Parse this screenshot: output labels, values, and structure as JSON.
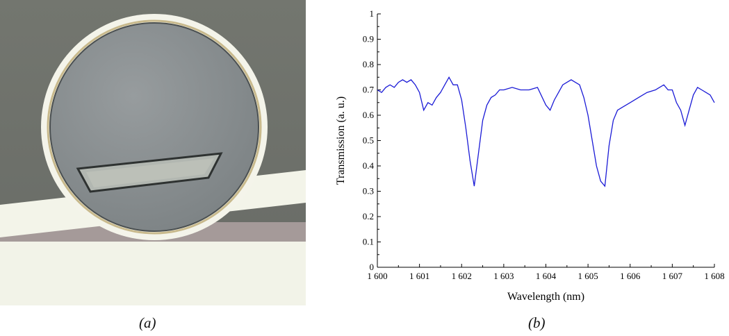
{
  "captions": {
    "a": "(a)",
    "b": "(b)"
  },
  "colors": {
    "line": "#1a1ad6",
    "axis": "#000000",
    "waveguide": "#f3f4ea",
    "substrate": "#6f736e",
    "disk": "#878d8e"
  },
  "chart_data": {
    "type": "line",
    "xlabel": "Wavelength (nm)",
    "ylabel": "Transmission (a. u.)",
    "xlim": [
      1600,
      1608
    ],
    "ylim": [
      0,
      1
    ],
    "xticks": [
      1600,
      1601,
      1602,
      1603,
      1604,
      1605,
      1606,
      1607,
      1608
    ],
    "xtick_labels": [
      "1 600",
      "1 601",
      "1 602",
      "1 603",
      "1 604",
      "1 605",
      "1 606",
      "1 607",
      "1 608"
    ],
    "yticks": [
      0,
      0.1,
      0.2,
      0.3,
      0.4,
      0.5,
      0.6,
      0.7,
      0.8,
      0.9,
      1
    ],
    "ytick_labels": [
      "0",
      "0.1",
      "0.2",
      "0.3",
      "0.4",
      "0.5",
      "0.6",
      "0.7",
      "0.8",
      "0.9",
      "1"
    ],
    "grid": false,
    "series": [
      {
        "x": [
          1600.0,
          1600.1,
          1600.2,
          1600.3,
          1600.4,
          1600.5,
          1600.6,
          1600.7,
          1600.8,
          1600.9,
          1601.0,
          1601.1,
          1601.2,
          1601.3,
          1601.4,
          1601.5,
          1601.6,
          1601.7,
          1601.8,
          1601.9,
          1602.0,
          1602.1,
          1602.2,
          1602.3,
          1602.4,
          1602.5,
          1602.6,
          1602.7,
          1602.8,
          1602.9,
          1603.0,
          1603.2,
          1603.4,
          1603.6,
          1603.8,
          1604.0,
          1604.1,
          1604.2,
          1604.3,
          1604.4,
          1604.5,
          1604.6,
          1604.7,
          1604.8,
          1604.9,
          1605.0,
          1605.1,
          1605.2,
          1605.3,
          1605.4,
          1605.5,
          1605.6,
          1605.7,
          1605.8,
          1606.0,
          1606.2,
          1606.4,
          1606.6,
          1606.8,
          1606.9,
          1607.0,
          1607.1,
          1607.2,
          1607.3,
          1607.4,
          1607.5,
          1607.6,
          1607.7,
          1607.8,
          1607.9,
          1608.0
        ],
        "y": [
          0.7,
          0.69,
          0.71,
          0.72,
          0.71,
          0.73,
          0.74,
          0.73,
          0.74,
          0.72,
          0.69,
          0.62,
          0.65,
          0.64,
          0.67,
          0.69,
          0.72,
          0.75,
          0.72,
          0.72,
          0.66,
          0.55,
          0.42,
          0.32,
          0.45,
          0.58,
          0.64,
          0.67,
          0.68,
          0.7,
          0.7,
          0.71,
          0.7,
          0.7,
          0.71,
          0.64,
          0.62,
          0.66,
          0.69,
          0.72,
          0.73,
          0.74,
          0.73,
          0.72,
          0.67,
          0.6,
          0.5,
          0.4,
          0.34,
          0.32,
          0.48,
          0.58,
          0.62,
          0.63,
          0.65,
          0.67,
          0.69,
          0.7,
          0.72,
          0.7,
          0.7,
          0.65,
          0.62,
          0.56,
          0.62,
          0.68,
          0.71,
          0.7,
          0.69,
          0.68,
          0.65
        ]
      }
    ]
  }
}
